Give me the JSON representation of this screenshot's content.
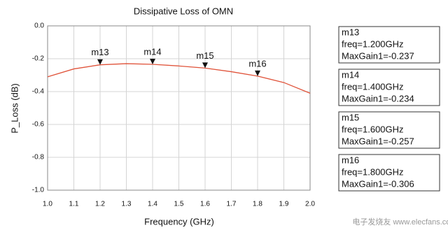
{
  "chart_data": {
    "type": "line",
    "title": "Dissipative Loss of OMN",
    "xlabel": "Frequency (GHz)",
    "ylabel": "P_Loss (dB)",
    "x": [
      1.0,
      1.1,
      1.2,
      1.3,
      1.4,
      1.5,
      1.6,
      1.7,
      1.8,
      1.9,
      2.0
    ],
    "series": [
      {
        "color": "#e0533a",
        "values": [
          -0.31,
          -0.262,
          -0.237,
          -0.23,
          -0.234,
          -0.244,
          -0.257,
          -0.279,
          -0.306,
          -0.345,
          -0.41
        ]
      }
    ],
    "xlim": [
      1.0,
      2.0
    ],
    "xticks": [
      {
        "value": 1,
        "label": "1.0"
      },
      1.1,
      1.2,
      1.3,
      1.4,
      1.5,
      1.6,
      1.7,
      1.8,
      1.9,
      {
        "value": 2,
        "label": "2.0"
      }
    ],
    "ylim": [
      -1.0,
      0.0
    ],
    "yticks": [
      {
        "value": 0,
        "label": "0.0"
      },
      -0.2,
      -0.4,
      -0.6,
      -0.8,
      {
        "value": -1,
        "label": "-1.0"
      }
    ],
    "grid": true,
    "markers": [
      {
        "name": "m13",
        "x": 1.2,
        "y": -0.237,
        "freq_label": "freq=1.200GHz",
        "gain_label": "MaxGain1=-0.237"
      },
      {
        "name": "m14",
        "x": 1.4,
        "y": -0.234,
        "freq_label": "freq=1.400GHz",
        "gain_label": "MaxGain1=-0.234"
      },
      {
        "name": "m15",
        "x": 1.6,
        "y": -0.257,
        "freq_label": "freq=1.600GHz",
        "gain_label": "MaxGain1=-0.257"
      },
      {
        "name": "m16",
        "x": 1.8,
        "y": -0.306,
        "freq_label": "freq=1.800GHz",
        "gain_label": "MaxGain1=-0.306"
      }
    ],
    "watermark": "电子发烧友 www.elecfans.com"
  }
}
